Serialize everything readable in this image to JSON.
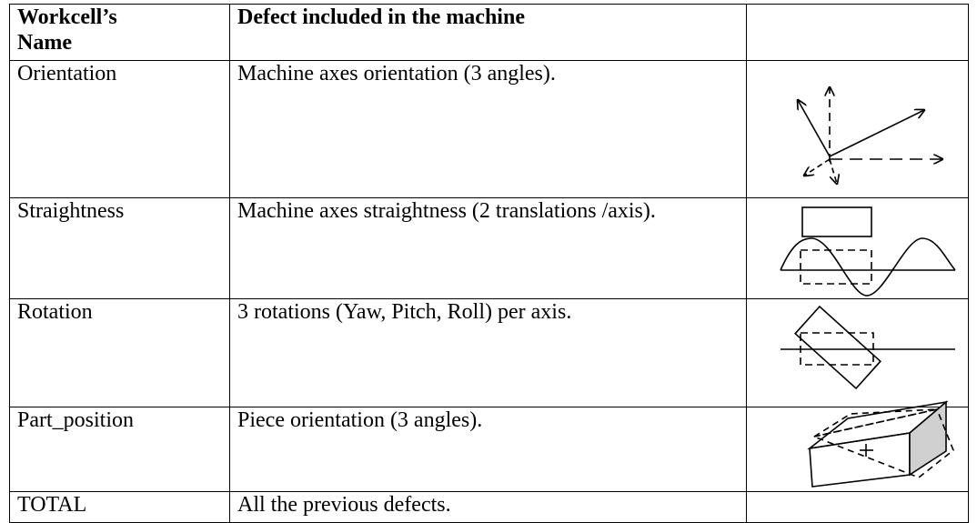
{
  "table": {
    "header": [
      "Workcell’s Name",
      "Defect included in the machine"
    ],
    "rows": [
      [
        "Orientation",
        "Machine axes orientation (3 angles)."
      ],
      [
        "Straightness",
        "Machine axes straightness (2 translations /axis)."
      ],
      [
        "Rotation",
        "3 rotations (Yaw, Pitch, Roll) per axis."
      ],
      [
        "Part_position",
        "Piece orientation (3 angles)."
      ],
      [
        "TOTAL",
        "All the previous defects."
      ]
    ]
  }
}
